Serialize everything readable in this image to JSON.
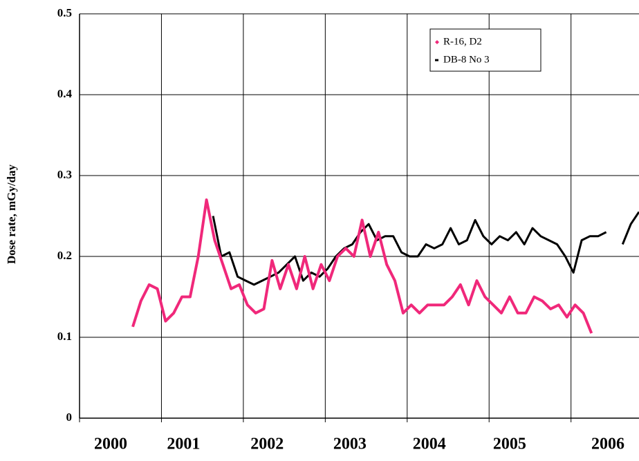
{
  "chart_data": {
    "type": "line",
    "ylabel": "Dose rate, mGy/day",
    "xlim": [
      2000,
      2006.83
    ],
    "ylim": [
      0,
      0.5
    ],
    "yticks": [
      0,
      0.1,
      0.2,
      0.3,
      0.4,
      0.5
    ],
    "xticks": [
      {
        "value": 2000.38,
        "label": "2000"
      },
      {
        "value": 2001.27,
        "label": "2001"
      },
      {
        "value": 2002.29,
        "label": "2002"
      },
      {
        "value": 2003.3,
        "label": "2003"
      },
      {
        "value": 2004.27,
        "label": "2004"
      },
      {
        "value": 2005.25,
        "label": "2005"
      },
      {
        "value": 2006.45,
        "label": "2006"
      }
    ],
    "xgrid": [
      2000,
      2001,
      2002,
      2003,
      2004,
      2005,
      2006
    ],
    "grid": true,
    "legend": "upper right",
    "series": [
      {
        "name": "R-16, D2",
        "color": "#f0287a",
        "x": [
          2000.65,
          2000.75,
          2000.85,
          2000.95,
          2001.05,
          2001.15,
          2001.25,
          2001.35,
          2001.45,
          2001.55,
          2001.65,
          2001.75,
          2001.85,
          2001.95,
          2002.05,
          2002.15,
          2002.25,
          2002.35,
          2002.45,
          2002.55,
          2002.65,
          2002.75,
          2002.85,
          2002.95,
          2003.05,
          2003.15,
          2003.25,
          2003.35,
          2003.45,
          2003.55,
          2003.65,
          2003.75,
          2003.85,
          2003.95,
          2004.05,
          2004.15,
          2004.25,
          2004.35,
          2004.45,
          2004.55,
          2004.65,
          2004.75,
          2004.85,
          2004.95,
          2005.05,
          2005.15,
          2005.25,
          2005.35,
          2005.45,
          2005.55,
          2005.65,
          2005.75,
          2005.85,
          2005.95,
          2006.05,
          2006.15,
          2006.25
        ],
        "values": [
          0.113,
          0.145,
          0.165,
          0.16,
          0.12,
          0.13,
          0.15,
          0.15,
          0.2,
          0.27,
          0.22,
          0.19,
          0.16,
          0.165,
          0.14,
          0.13,
          0.135,
          0.195,
          0.16,
          0.19,
          0.16,
          0.2,
          0.16,
          0.19,
          0.17,
          0.2,
          0.21,
          0.2,
          0.245,
          0.2,
          0.23,
          0.19,
          0.17,
          0.13,
          0.14,
          0.13,
          0.14,
          0.14,
          0.14,
          0.15,
          0.165,
          0.14,
          0.17,
          0.15,
          0.14,
          0.13,
          0.15,
          0.13,
          0.13,
          0.15,
          0.145,
          0.135,
          0.14,
          0.125,
          0.14,
          0.13,
          0.105
        ]
      },
      {
        "name": "DB-8 No 3",
        "color": "#000000",
        "x": [
          2001.63,
          2001.73,
          2001.83,
          2001.93,
          2002.03,
          2002.13,
          2002.23,
          2002.33,
          2002.43,
          2002.53,
          2002.63,
          2002.73,
          2002.83,
          2002.93,
          2003.03,
          2003.13,
          2003.23,
          2003.33,
          2003.43,
          2003.53,
          2003.63,
          2003.73,
          2003.83,
          2003.93,
          2004.03,
          2004.13,
          2004.23,
          2004.33,
          2004.43,
          2004.53,
          2004.63,
          2004.73,
          2004.83,
          2004.93,
          2005.03,
          2005.13,
          2005.23,
          2005.33,
          2005.43,
          2005.53,
          2005.63,
          2005.73,
          2005.83,
          2005.93,
          2006.03,
          2006.13,
          2006.23,
          2006.33,
          2006.43,
          2006.53,
          2006.63,
          2006.73,
          2006.83
        ],
        "values": [
          0.25,
          0.2,
          0.205,
          0.175,
          0.17,
          0.165,
          0.17,
          0.175,
          0.18,
          0.19,
          0.2,
          0.17,
          0.18,
          0.175,
          0.185,
          0.2,
          0.21,
          0.215,
          0.23,
          0.24,
          0.22,
          0.225,
          0.225,
          0.205,
          0.2,
          0.2,
          0.215,
          0.21,
          0.215,
          0.235,
          0.215,
          0.22,
          0.245,
          0.225,
          0.215,
          0.225,
          0.22,
          0.23,
          0.215,
          0.235,
          0.225,
          0.22,
          0.215,
          0.2,
          0.18,
          0.22,
          0.225,
          0.225,
          0.23,
          null,
          0.215,
          0.24,
          0.255
        ]
      }
    ]
  }
}
